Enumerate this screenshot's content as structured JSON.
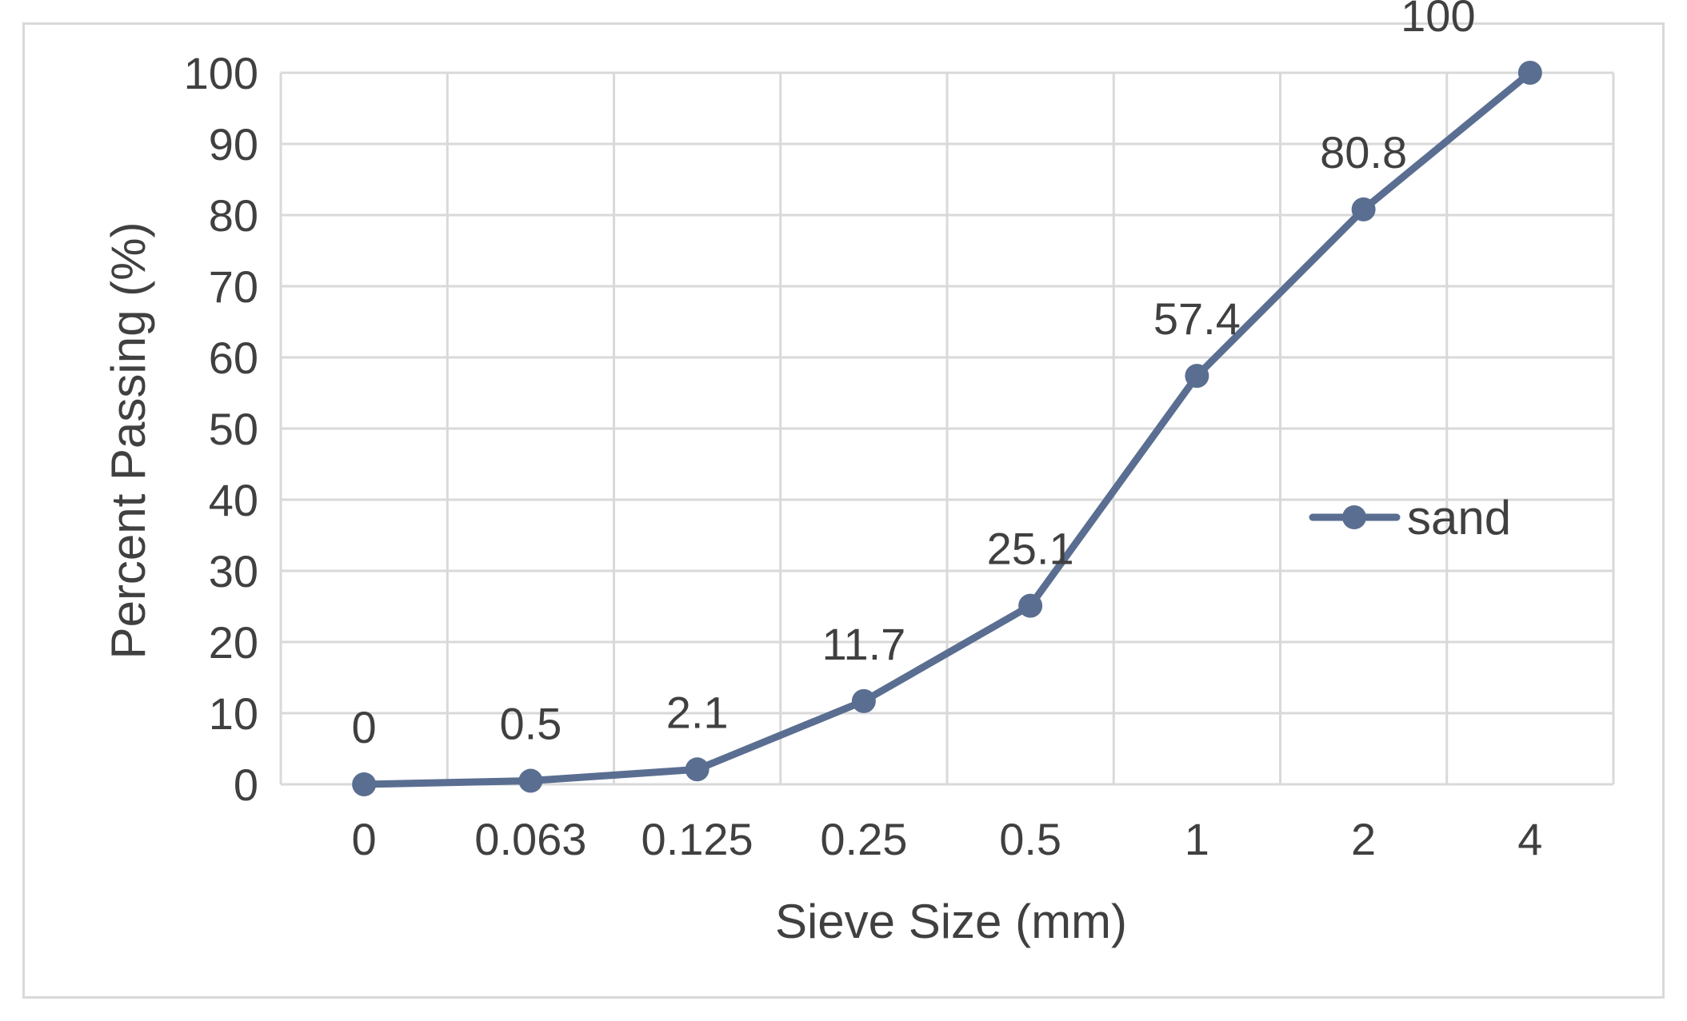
{
  "chart_data": {
    "type": "line",
    "categories": [
      "0",
      "0.063",
      "0.125",
      "0.25",
      "0.5",
      "1",
      "2",
      "4"
    ],
    "series": [
      {
        "name": "sand",
        "values": [
          0,
          0.5,
          2.1,
          11.7,
          25.1,
          57.4,
          80.8,
          100
        ],
        "data_labels": [
          "0",
          "0.5",
          "2.1",
          "11.7",
          "25.1",
          "57.4",
          "80.8",
          "100"
        ],
        "color": "#5a6e91"
      }
    ],
    "xlabel": "Sieve Size (mm)",
    "ylabel": "Percent Passing (%)",
    "ylim": [
      0,
      100
    ],
    "yticks": [
      "0",
      "10",
      "20",
      "30",
      "40",
      "50",
      "60",
      "70",
      "80",
      "90",
      "100"
    ],
    "grid": true,
    "legend_position": "right",
    "gridline_color": "#d9d9d9",
    "text_color": "#404040"
  }
}
